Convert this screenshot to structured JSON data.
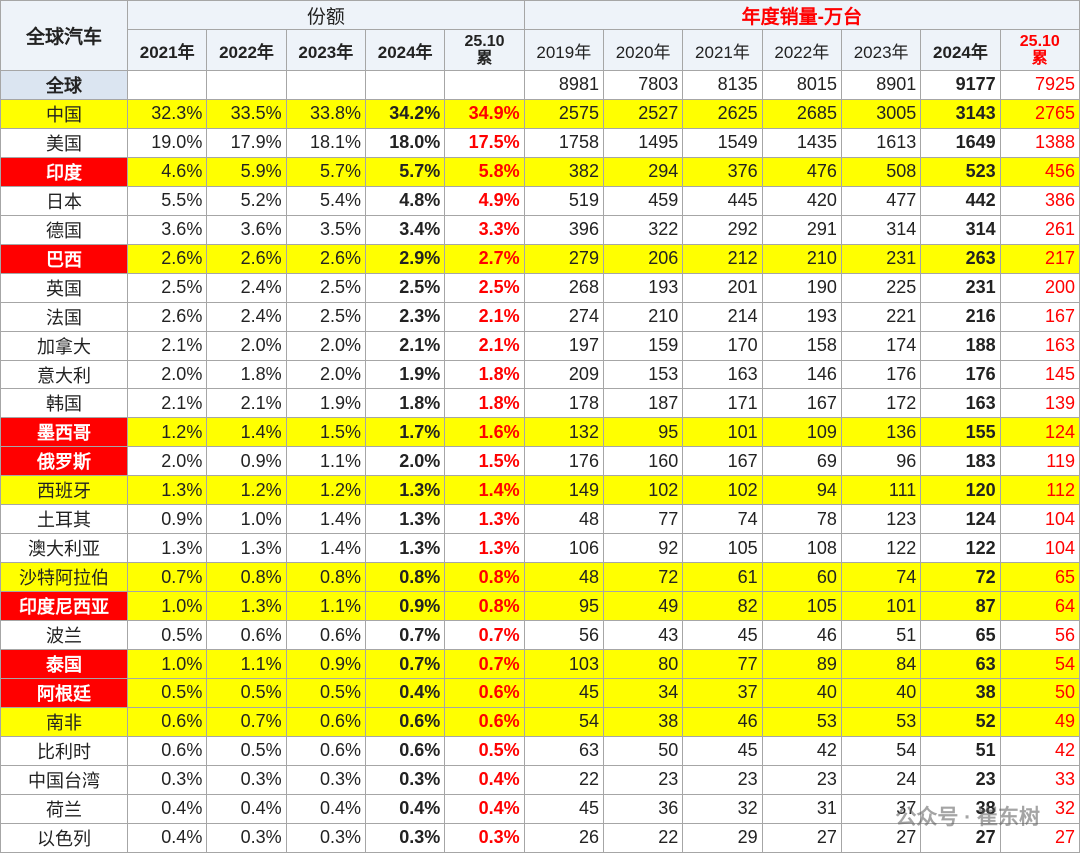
{
  "table": {
    "corner": "全球汽车",
    "share_group": "份额",
    "sales_group": "年度销量-万台",
    "share_years": [
      "2021年",
      "2022年",
      "2023年",
      "2024年",
      "25.10\n累"
    ],
    "sales_years": [
      "2019年",
      "2020年",
      "2021年",
      "2022年",
      "2023年",
      "2024年",
      "25.10\n累"
    ],
    "global": {
      "name": "全球",
      "sales": [
        8981,
        7803,
        8135,
        8015,
        8901,
        9177,
        7925
      ]
    },
    "rows": [
      {
        "name": "中国",
        "share": [
          "32.3%",
          "33.5%",
          "33.8%",
          "34.2%",
          "34.9%"
        ],
        "sales": [
          2575,
          2527,
          2625,
          2685,
          3005,
          3143,
          2765
        ]
      },
      {
        "name": "美国",
        "share": [
          "19.0%",
          "17.9%",
          "18.1%",
          "18.0%",
          "17.5%"
        ],
        "sales": [
          1758,
          1495,
          1549,
          1435,
          1613,
          1649,
          1388
        ]
      },
      {
        "name": "印度",
        "share": [
          "4.6%",
          "5.9%",
          "5.7%",
          "5.7%",
          "5.8%"
        ],
        "sales": [
          382,
          294,
          376,
          476,
          508,
          523,
          456
        ]
      },
      {
        "name": "日本",
        "share": [
          "5.5%",
          "5.2%",
          "5.4%",
          "4.8%",
          "4.9%"
        ],
        "sales": [
          519,
          459,
          445,
          420,
          477,
          442,
          386
        ]
      },
      {
        "name": "德国",
        "share": [
          "3.6%",
          "3.6%",
          "3.5%",
          "3.4%",
          "3.3%"
        ],
        "sales": [
          396,
          322,
          292,
          291,
          314,
          314,
          261
        ]
      },
      {
        "name": "巴西",
        "share": [
          "2.6%",
          "2.6%",
          "2.6%",
          "2.9%",
          "2.7%"
        ],
        "sales": [
          279,
          206,
          212,
          210,
          231,
          263,
          217
        ]
      },
      {
        "name": "英国",
        "share": [
          "2.5%",
          "2.4%",
          "2.5%",
          "2.5%",
          "2.5%"
        ],
        "sales": [
          268,
          193,
          201,
          190,
          225,
          231,
          200
        ]
      },
      {
        "name": "法国",
        "share": [
          "2.6%",
          "2.4%",
          "2.5%",
          "2.3%",
          "2.1%"
        ],
        "sales": [
          274,
          210,
          214,
          193,
          221,
          216,
          167
        ]
      },
      {
        "name": "加拿大",
        "share": [
          "2.1%",
          "2.0%",
          "2.0%",
          "2.1%",
          "2.1%"
        ],
        "sales": [
          197,
          159,
          170,
          158,
          174,
          188,
          163
        ]
      },
      {
        "name": "意大利",
        "share": [
          "2.0%",
          "1.8%",
          "2.0%",
          "1.9%",
          "1.8%"
        ],
        "sales": [
          209,
          153,
          163,
          146,
          176,
          176,
          145
        ]
      },
      {
        "name": "韩国",
        "share": [
          "2.1%",
          "2.1%",
          "1.9%",
          "1.8%",
          "1.8%"
        ],
        "sales": [
          178,
          187,
          171,
          167,
          172,
          163,
          139
        ]
      },
      {
        "name": "墨西哥",
        "share": [
          "1.2%",
          "1.4%",
          "1.5%",
          "1.7%",
          "1.6%"
        ],
        "sales": [
          132,
          95,
          101,
          109,
          136,
          155,
          124
        ]
      },
      {
        "name": "俄罗斯",
        "share": [
          "2.0%",
          "0.9%",
          "1.1%",
          "2.0%",
          "1.5%"
        ],
        "sales": [
          176,
          160,
          167,
          69,
          96,
          183,
          119
        ]
      },
      {
        "name": "西班牙",
        "share": [
          "1.3%",
          "1.2%",
          "1.2%",
          "1.3%",
          "1.4%"
        ],
        "sales": [
          149,
          102,
          102,
          94,
          111,
          120,
          112
        ]
      },
      {
        "name": "土耳其",
        "share": [
          "0.9%",
          "1.0%",
          "1.4%",
          "1.3%",
          "1.3%"
        ],
        "sales": [
          48,
          77,
          74,
          78,
          123,
          124,
          104
        ]
      },
      {
        "name": "澳大利亚",
        "share": [
          "1.3%",
          "1.3%",
          "1.4%",
          "1.3%",
          "1.3%"
        ],
        "sales": [
          106,
          92,
          105,
          108,
          122,
          122,
          104
        ]
      },
      {
        "name": "沙特阿拉伯",
        "share": [
          "0.7%",
          "0.8%",
          "0.8%",
          "0.8%",
          "0.8%"
        ],
        "sales": [
          48,
          72,
          61,
          60,
          74,
          72,
          65
        ]
      },
      {
        "name": "印度尼西亚",
        "share": [
          "1.0%",
          "1.3%",
          "1.1%",
          "0.9%",
          "0.8%"
        ],
        "sales": [
          95,
          49,
          82,
          105,
          101,
          87,
          64
        ]
      },
      {
        "name": "波兰",
        "share": [
          "0.5%",
          "0.6%",
          "0.6%",
          "0.7%",
          "0.7%"
        ],
        "sales": [
          56,
          43,
          45,
          46,
          51,
          65,
          56
        ]
      },
      {
        "name": "泰国",
        "share": [
          "1.0%",
          "1.1%",
          "0.9%",
          "0.7%",
          "0.7%"
        ],
        "sales": [
          103,
          80,
          77,
          89,
          84,
          63,
          54
        ]
      },
      {
        "name": "阿根廷",
        "share": [
          "0.5%",
          "0.5%",
          "0.5%",
          "0.4%",
          "0.6%"
        ],
        "sales": [
          45,
          34,
          37,
          40,
          40,
          38,
          50
        ]
      },
      {
        "name": "南非",
        "share": [
          "0.6%",
          "0.7%",
          "0.6%",
          "0.6%",
          "0.6%"
        ],
        "sales": [
          54,
          38,
          46,
          53,
          53,
          52,
          49
        ]
      },
      {
        "name": "比利时",
        "share": [
          "0.6%",
          "0.5%",
          "0.6%",
          "0.6%",
          "0.5%"
        ],
        "sales": [
          63,
          50,
          45,
          42,
          54,
          51,
          42
        ]
      },
      {
        "name": "中国台湾",
        "share": [
          "0.3%",
          "0.3%",
          "0.3%",
          "0.3%",
          "0.4%"
        ],
        "sales": [
          22,
          23,
          23,
          23,
          24,
          23,
          33
        ]
      },
      {
        "name": "荷兰",
        "share": [
          "0.4%",
          "0.4%",
          "0.4%",
          "0.4%",
          "0.4%"
        ],
        "sales": [
          45,
          36,
          32,
          31,
          37,
          38,
          32
        ]
      },
      {
        "name": "以色列",
        "share": [
          "0.4%",
          "0.3%",
          "0.3%",
          "0.3%",
          "0.3%"
        ],
        "sales": [
          26,
          22,
          29,
          27,
          27,
          27,
          27
        ]
      }
    ]
  },
  "watermark": "公众号 · 崔东树"
}
